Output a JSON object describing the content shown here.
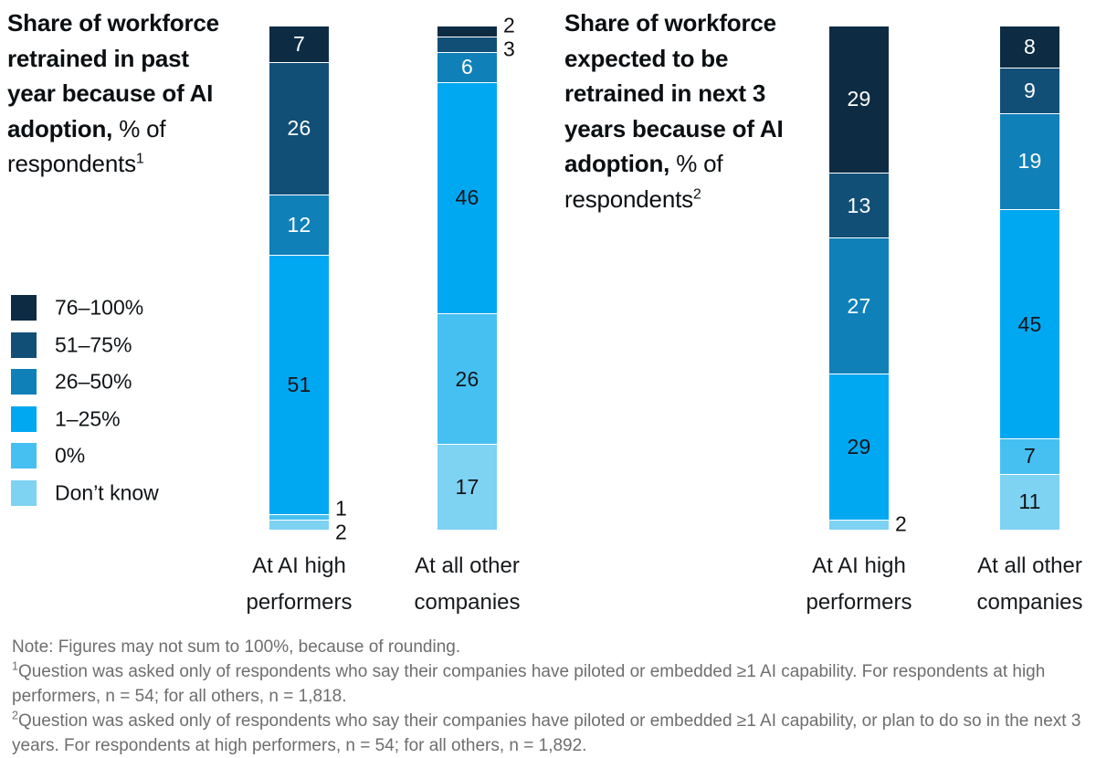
{
  "chart_data": [
    {
      "type": "bar",
      "stacked": true,
      "orientation": "vertical",
      "title": "Share of workforce retrained in past year because of AI adoption, % of respondents¹",
      "categories": [
        "At AI high performers",
        "At all other companies"
      ],
      "series": [
        {
          "name": "76–100%",
          "values": [
            7,
            2
          ]
        },
        {
          "name": "51–75%",
          "values": [
            26,
            3
          ]
        },
        {
          "name": "26–50%",
          "values": [
            12,
            6
          ]
        },
        {
          "name": "1–25%",
          "values": [
            51,
            46
          ]
        },
        {
          "name": "0%",
          "values": [
            1,
            26
          ]
        },
        {
          "name": "Don’t know",
          "values": [
            2,
            17
          ]
        }
      ],
      "ylim": [
        0,
        100
      ],
      "grid": false,
      "legend_position": "left"
    },
    {
      "type": "bar",
      "stacked": true,
      "orientation": "vertical",
      "title": "Share of workforce expected to be retrained in next 3 years because of AI adoption, % of respondents²",
      "categories": [
        "At AI high performers",
        "At all other companies"
      ],
      "series": [
        {
          "name": "76–100%",
          "values": [
            29,
            8
          ]
        },
        {
          "name": "51–75%",
          "values": [
            13,
            9
          ]
        },
        {
          "name": "26–50%",
          "values": [
            27,
            19
          ]
        },
        {
          "name": "1–25%",
          "values": [
            29,
            45
          ]
        },
        {
          "name": "0%",
          "values": [
            0,
            7
          ]
        },
        {
          "name": "Don’t know",
          "values": [
            2,
            11
          ]
        }
      ],
      "ylim": [
        0,
        100
      ],
      "grid": false,
      "legend_position": "left"
    }
  ],
  "colors": {
    "76–100%": "#0d2c44",
    "51–75%": "#124f77",
    "26–50%": "#1080b8",
    "1–25%": "#00a8f2",
    "0%": "#46c0f1",
    "Don’t know": "#7ed2f2",
    "label_on_dark": "#ffffff",
    "label_on_light": "#121519",
    "separator": "#ffffff",
    "footnote_text": "#6e6e6e"
  },
  "legend": {
    "items": [
      "76–100%",
      "51–75%",
      "26–50%",
      "1–25%",
      "0%",
      "Don’t know"
    ]
  },
  "charts": [
    {
      "title_bold": "Share of workforce retrained in past year because of AI adoption,",
      "title_rest": " % of respondents",
      "footnote_mark": "1",
      "bars": [
        {
          "category_lines": [
            "At AI high",
            "performers"
          ],
          "segments": [
            {
              "bucket": "76–100%",
              "value": 7
            },
            {
              "bucket": "51–75%",
              "value": 26
            },
            {
              "bucket": "26–50%",
              "value": 12
            },
            {
              "bucket": "1–25%",
              "value": 51
            },
            {
              "bucket": "0%",
              "value": 1,
              "outside": true
            },
            {
              "bucket": "Don’t know",
              "value": 2,
              "outside": true
            }
          ]
        },
        {
          "category_lines": [
            "At all other",
            "companies"
          ],
          "segments": [
            {
              "bucket": "76–100%",
              "value": 2,
              "outside": true
            },
            {
              "bucket": "51–75%",
              "value": 3,
              "outside": true
            },
            {
              "bucket": "26–50%",
              "value": 6
            },
            {
              "bucket": "1–25%",
              "value": 46
            },
            {
              "bucket": "0%",
              "value": 26
            },
            {
              "bucket": "Don’t know",
              "value": 17
            }
          ]
        }
      ]
    },
    {
      "title_bold": "Share of workforce expected to be retrained in next 3 years because of AI adoption,",
      "title_rest": " % of respondents",
      "footnote_mark": "2",
      "bars": [
        {
          "category_lines": [
            "At AI high",
            "performers"
          ],
          "segments": [
            {
              "bucket": "76–100%",
              "value": 29
            },
            {
              "bucket": "51–75%",
              "value": 13
            },
            {
              "bucket": "26–50%",
              "value": 27
            },
            {
              "bucket": "1–25%",
              "value": 29
            },
            {
              "bucket": "Don’t know",
              "value": 2,
              "outside": true
            }
          ]
        },
        {
          "category_lines": [
            "At all other",
            "companies"
          ],
          "segments": [
            {
              "bucket": "76–100%",
              "value": 8
            },
            {
              "bucket": "51–75%",
              "value": 9
            },
            {
              "bucket": "26–50%",
              "value": 19
            },
            {
              "bucket": "1–25%",
              "value": 45
            },
            {
              "bucket": "0%",
              "value": 7
            },
            {
              "bucket": "Don’t know",
              "value": 11
            }
          ]
        }
      ]
    }
  ],
  "notes": [
    {
      "sup": "",
      "text": "Note: Figures may not sum to 100%, because of rounding."
    },
    {
      "sup": "1",
      "text": "Question was asked only of respondents who say their companies have piloted or embedded ≥1 AI capability. For respondents at high performers, n = 54; for all others, n = 1,818."
    },
    {
      "sup": "2",
      "text": "Question was asked only of respondents who say their companies have piloted or embedded ≥1 AI capability, or plan to do so in the next 3 years. For respondents at high performers, n = 54; for all others, n = 1,892."
    }
  ]
}
